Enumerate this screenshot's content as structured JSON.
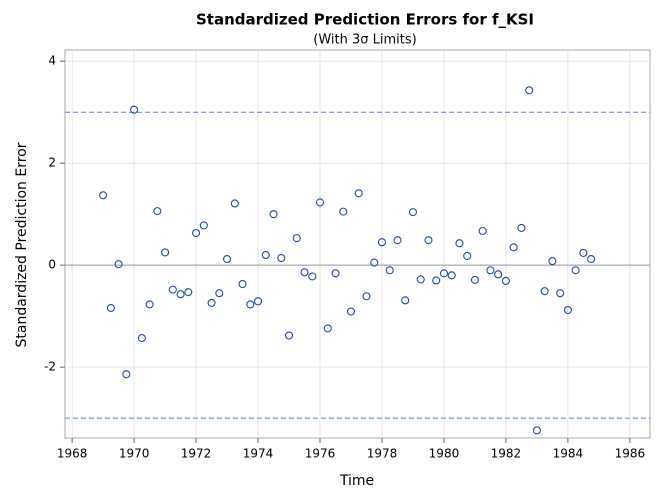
{
  "chart_data": {
    "type": "scatter",
    "title": "Standardized Prediction Errors for f_KSI",
    "subtitle": "(With 3σ Limits)",
    "x_label": "Time",
    "y_label": "Standardized Prediction Error",
    "color": "#1f4e9c",
    "grid": true,
    "limits": [
      -3,
      3
    ],
    "reference_line": 0,
    "xlim": [
      1967.77,
      1986.65
    ],
    "ylim": [
      -3.39,
      4.22
    ],
    "xticks": [
      1968,
      1970,
      1972,
      1974,
      1976,
      1978,
      1980,
      1982,
      1984,
      1986
    ],
    "yticks": [
      -2,
      0,
      2,
      4
    ],
    "x": [
      1969,
      1969.25,
      1969.5,
      1969.75,
      1970,
      1970.25,
      1970.5,
      1970.75,
      1971,
      1971.25,
      1971.5,
      1971.75,
      1972,
      1972.25,
      1972.5,
      1972.75,
      1973,
      1973.25,
      1973.5,
      1973.75,
      1974,
      1974.25,
      1974.5,
      1974.75,
      1975,
      1975.25,
      1975.5,
      1975.75,
      1976,
      1976.25,
      1976.5,
      1976.75,
      1977,
      1977.25,
      1977.5,
      1977.75,
      1978,
      1978.25,
      1978.5,
      1978.75,
      1979,
      1979.25,
      1979.5,
      1979.75,
      1980,
      1980.25,
      1980.5,
      1980.75,
      1981,
      1981.25,
      1981.5,
      1981.75,
      1982,
      1982.25,
      1982.5,
      1982.75,
      1983,
      1983.25,
      1983.5,
      1983.75,
      1984,
      1984.25,
      1984.5,
      1984.75
    ],
    "values": [
      1.37,
      -0.84,
      0.02,
      -2.14,
      3.05,
      -1.43,
      -0.77,
      1.06,
      0.25,
      -0.48,
      -0.57,
      -0.53,
      0.63,
      0.78,
      -0.74,
      -0.55,
      0.12,
      1.21,
      -0.37,
      -0.77,
      -0.71,
      0.2,
      1.0,
      0.14,
      -1.38,
      0.53,
      -0.14,
      -0.22,
      1.23,
      -1.24,
      -0.16,
      1.05,
      -0.91,
      1.41,
      -0.61,
      0.05,
      0.45,
      -0.1,
      0.49,
      -0.69,
      1.04,
      -0.28,
      0.49,
      -0.3,
      -0.16,
      -0.2,
      0.43,
      0.18,
      -0.29,
      0.67,
      -0.1,
      -0.18,
      -0.31,
      0.35,
      0.73,
      3.43,
      -3.24,
      -0.51,
      0.08,
      -0.55,
      -0.88,
      -0.1,
      0.24,
      0.12
    ]
  }
}
